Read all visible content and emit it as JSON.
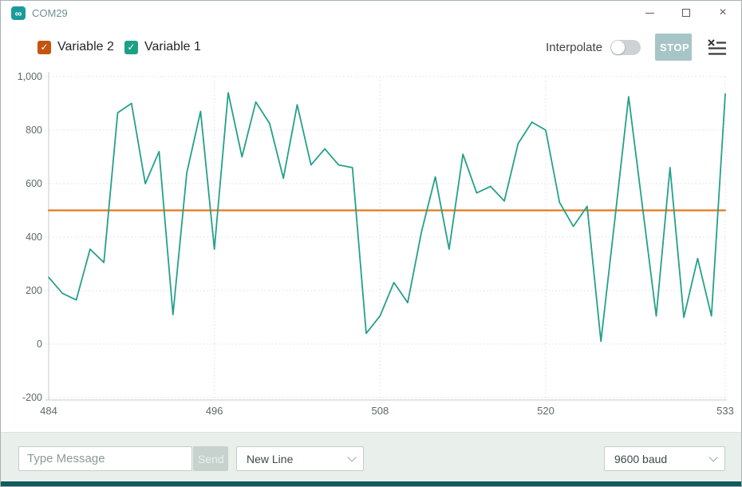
{
  "window": {
    "title": "COM29",
    "app_icon": "∞",
    "controls": {
      "minimize": "–",
      "maximize": "",
      "close": "×"
    }
  },
  "toolbar": {
    "legend": [
      {
        "label": "Variable 2",
        "color": "#c4540e",
        "checked": true,
        "checkmark": "✓"
      },
      {
        "label": "Variable 1",
        "color": "#1da086",
        "checked": true,
        "checkmark": "✓"
      }
    ],
    "interpolate_label": "Interpolate",
    "interpolate_on": false,
    "stop_label": "STOP"
  },
  "chart_data": {
    "type": "line",
    "title": "",
    "xlabel": "",
    "ylabel": "",
    "x": [
      484,
      485,
      486,
      487,
      488,
      489,
      490,
      491,
      492,
      493,
      494,
      495,
      496,
      497,
      498,
      499,
      500,
      501,
      502,
      503,
      504,
      505,
      506,
      507,
      508,
      509,
      510,
      511,
      512,
      513,
      514,
      515,
      516,
      517,
      518,
      519,
      520,
      521,
      522,
      523,
      524,
      525,
      526,
      527,
      528,
      529,
      530,
      531,
      532,
      533
    ],
    "series": [
      {
        "name": "Variable 2",
        "color": "#e07b23",
        "width": 2.2,
        "values": [
          500,
          500,
          500,
          500,
          500,
          500,
          500,
          500,
          500,
          500,
          500,
          500,
          500,
          500,
          500,
          500,
          500,
          500,
          500,
          500,
          500,
          500,
          500,
          500,
          500,
          500,
          500,
          500,
          500,
          500,
          500,
          500,
          500,
          500,
          500,
          500,
          500,
          500,
          500,
          500,
          500,
          500,
          500,
          500,
          500,
          500,
          500,
          500,
          500,
          500
        ]
      },
      {
        "name": "Variable 1",
        "color": "#25a08a",
        "width": 1.8,
        "values": [
          250,
          190,
          165,
          355,
          305,
          865,
          900,
          600,
          720,
          110,
          640,
          870,
          355,
          940,
          700,
          905,
          825,
          620,
          895,
          670,
          730,
          670,
          660,
          40,
          105,
          230,
          155,
          420,
          625,
          355,
          710,
          565,
          590,
          535,
          750,
          830,
          800,
          530,
          440,
          515,
          10,
          465,
          925,
          515,
          105,
          660,
          100,
          320,
          105,
          935
        ]
      }
    ],
    "xlim": [
      484,
      533
    ],
    "ylim": [
      -200,
      1000
    ],
    "x_ticks": [
      484,
      496,
      508,
      520,
      533
    ],
    "y_ticks": [
      -200,
      0,
      200,
      400,
      600,
      800,
      1000
    ],
    "y_tick_labels": [
      "-200",
      "0",
      "200",
      "400",
      "600",
      "800",
      "1,000"
    ],
    "grid": "dotted",
    "legend_position": "top-left",
    "interpolate": false
  },
  "bottom_bar": {
    "message_placeholder": "Type Message",
    "send_label": "Send",
    "line_ending": "New Line",
    "baud_rate": "9600 baud"
  }
}
